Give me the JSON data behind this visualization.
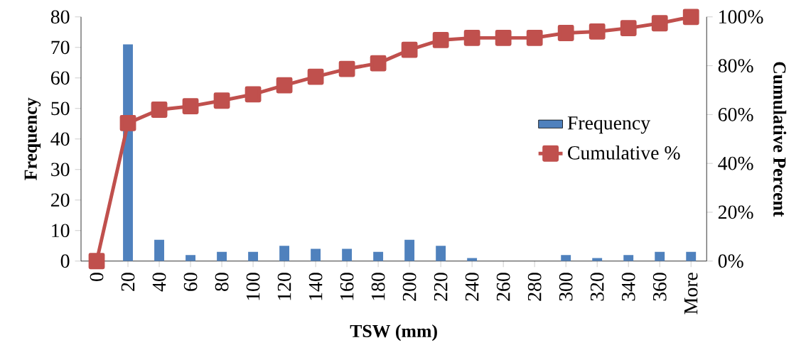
{
  "chart_data": {
    "type": "bar",
    "xlabel": "TSW (mm)",
    "ylabel": "Frequency",
    "y2label": "Cumulative Percent",
    "categories": [
      "0",
      "20",
      "40",
      "60",
      "80",
      "100",
      "120",
      "140",
      "160",
      "180",
      "200",
      "220",
      "240",
      "260",
      "280",
      "300",
      "320",
      "340",
      "360",
      "More"
    ],
    "series": [
      {
        "name": "Frequency",
        "color": "#4f81bd",
        "values": [
          0,
          71,
          7,
          2,
          3,
          3,
          5,
          4,
          4,
          3,
          7,
          5,
          1,
          0,
          0,
          2,
          1,
          2,
          3,
          3
        ]
      },
      {
        "name": "Cumulative %",
        "type": "line",
        "axis": "y2",
        "color": "#c0504d",
        "marker": "square",
        "line_style": "solid",
        "values": [
          0,
          56.5,
          62,
          63.4,
          65.7,
          68.3,
          72,
          75.5,
          78.7,
          81,
          86.5,
          90.5,
          91.4,
          91.4,
          91.4,
          93.4,
          94,
          95.4,
          97.4,
          100
        ]
      }
    ],
    "ylim": [
      0,
      80
    ],
    "yticks": [
      0,
      10,
      20,
      30,
      40,
      50,
      60,
      70,
      80
    ],
    "y2lim": [
      0,
      100
    ],
    "y2ticks": [
      {
        "value": 0,
        "label": "0%"
      },
      {
        "value": 20,
        "label": "20%"
      },
      {
        "value": 40,
        "label": "40%"
      },
      {
        "value": 60,
        "label": "60%"
      },
      {
        "value": 80,
        "label": "80%"
      },
      {
        "value": 100,
        "label": "100%"
      }
    ],
    "legend": "right",
    "grid": false
  }
}
